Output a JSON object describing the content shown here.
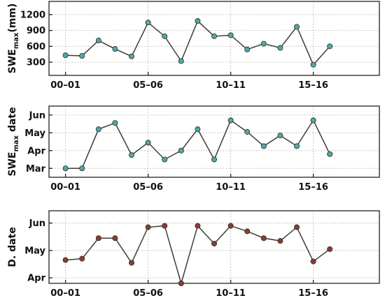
{
  "colors": {
    "swe_max_marker": "#4da8a6",
    "swe_date_marker": "#4da8a6",
    "d_date_marker": "#8e3a34",
    "line": "#3d3d3d"
  },
  "chart_data": [
    {
      "type": "line",
      "ylabel": {
        "main": "SWE",
        "sub": "max",
        "rest": "(mm)"
      },
      "x_ticks": [
        "00–01",
        "05–06",
        "10–11",
        "15–16"
      ],
      "xlim": [
        -1,
        19
      ],
      "x_tick_positions": [
        0,
        5,
        10,
        15
      ],
      "ylim": [
        50,
        1450
      ],
      "y_ticks": [
        300,
        600,
        900,
        1200
      ],
      "y_tick_labels": [
        "300",
        "600",
        "900",
        "1200"
      ],
      "grid": true,
      "series": [
        {
          "x": [
            0,
            1,
            2,
            3,
            4,
            5,
            6,
            7,
            8,
            9,
            10,
            11,
            12,
            13,
            14,
            15,
            16
          ],
          "values": [
            430,
            420,
            710,
            550,
            410,
            1050,
            790,
            320,
            1080,
            790,
            810,
            540,
            650,
            570,
            970,
            250,
            600
          ]
        }
      ]
    },
    {
      "type": "line",
      "ylabel": {
        "main": "SWE",
        "sub": "max",
        "rest": " date"
      },
      "x_ticks": [
        "00–01",
        "05–06",
        "10–11",
        "15–16"
      ],
      "xlim": [
        -1,
        19
      ],
      "x_tick_positions": [
        0,
        5,
        10,
        15
      ],
      "ylim": [
        2.5,
        6.5
      ],
      "y_ticks": [
        3,
        4,
        5,
        6
      ],
      "y_tick_labels": [
        "Mar",
        "Apr",
        "May",
        "Jun"
      ],
      "grid": true,
      "series": [
        {
          "x": [
            0,
            1,
            2,
            3,
            4,
            5,
            6,
            7,
            8,
            9,
            10,
            11,
            12,
            13,
            14,
            15,
            16
          ],
          "values": [
            3.0,
            3.0,
            5.2,
            5.55,
            3.75,
            4.45,
            3.5,
            4.0,
            5.2,
            3.5,
            5.7,
            5.05,
            4.25,
            4.85,
            4.25,
            5.7,
            3.8
          ]
        }
      ]
    },
    {
      "type": "line",
      "ylabel": {
        "main": "D. date",
        "sub": "",
        "rest": ""
      },
      "x_ticks": [
        "00–01",
        "05–06",
        "10–11",
        "15–16"
      ],
      "xlim": [
        -1,
        19
      ],
      "x_tick_positions": [
        0,
        5,
        10,
        15
      ],
      "ylim": [
        3.8,
        6.45
      ],
      "y_ticks": [
        4,
        5,
        6
      ],
      "y_tick_labels": [
        "Apr",
        "May",
        "Jun"
      ],
      "grid": true,
      "series": [
        {
          "x": [
            0,
            1,
            2,
            3,
            4,
            5,
            6,
            7,
            8,
            9,
            10,
            11,
            12,
            13,
            14,
            15,
            16
          ],
          "values": [
            4.65,
            4.7,
            5.45,
            5.45,
            4.55,
            5.85,
            5.9,
            3.8,
            5.9,
            5.25,
            5.9,
            5.7,
            5.45,
            5.35,
            5.85,
            4.6,
            5.05
          ]
        }
      ]
    }
  ]
}
